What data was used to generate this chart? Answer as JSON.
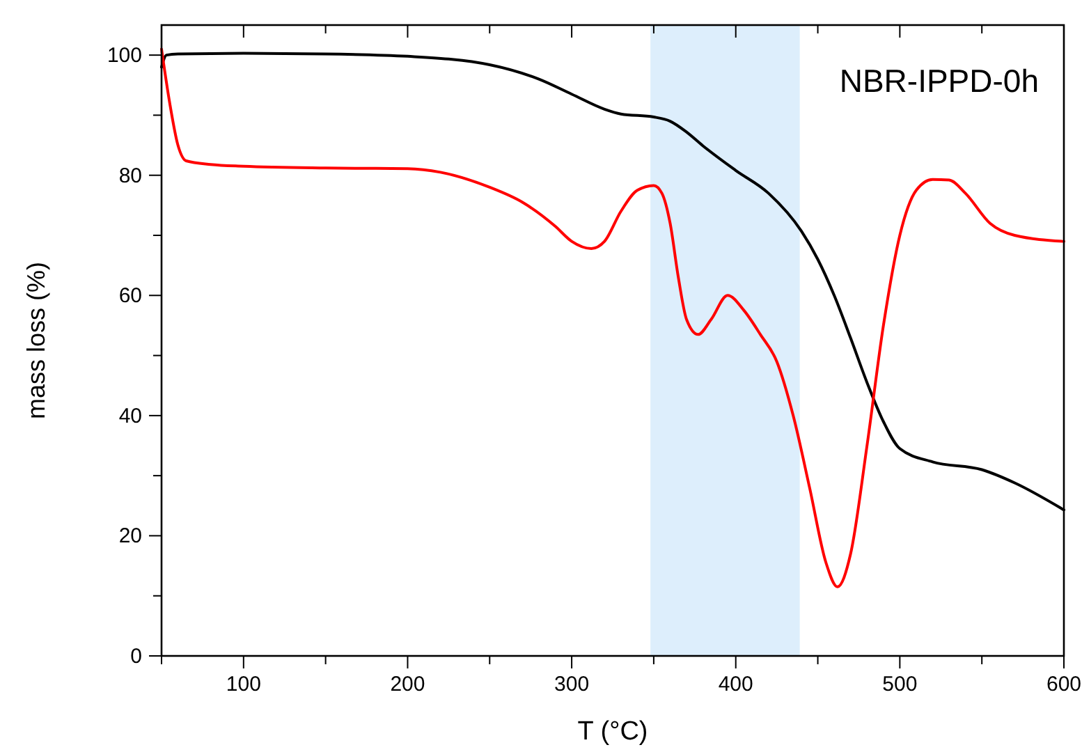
{
  "chart_data": {
    "type": "line",
    "xlabel": "T (°C)",
    "ylabel": "mass loss (%)",
    "annotations": [
      "NBR-IPPD-0h"
    ],
    "xlim": [
      50,
      600
    ],
    "ylim": [
      0,
      105
    ],
    "xticks": [
      {
        "value": 50,
        "label": null
      },
      100,
      {
        "value": 150,
        "label": null
      },
      200,
      {
        "value": 250,
        "label": null
      },
      300,
      {
        "value": 350,
        "label": null
      },
      400,
      {
        "value": 450,
        "label": null
      },
      500,
      {
        "value": 550,
        "label": null
      },
      600
    ],
    "yticks": [
      0,
      {
        "value": 10,
        "label": null
      },
      20,
      {
        "value": 30,
        "label": null
      },
      40,
      {
        "value": 50,
        "label": null
      },
      60,
      {
        "value": 70,
        "label": null
      },
      80,
      {
        "value": 90,
        "label": null
      },
      100
    ],
    "grid": false,
    "line_style": "solid",
    "marker": "none",
    "bands": [
      {
        "axis": "x",
        "from": 348,
        "to": 439,
        "color": "#ddeefc"
      }
    ],
    "series": [
      {
        "color": "#000000",
        "x": [
          50,
          53,
          60,
          100,
          150,
          200,
          250,
          280,
          300,
          320,
          330,
          350,
          360,
          370,
          380,
          400,
          420,
          440,
          450,
          460,
          470,
          480,
          490,
          500,
          520,
          550,
          570,
          600
        ],
        "values": [
          98,
          100,
          100.2,
          100.3,
          100.2,
          99.8,
          98.4,
          96,
          93.5,
          91,
          90.2,
          89.7,
          89,
          87.2,
          84.9,
          80.8,
          77,
          70.7,
          66,
          60,
          52.9,
          45.5,
          39,
          34.5,
          32.3,
          31,
          28.8,
          24.3
        ]
      },
      {
        "color": "#ff0000",
        "x": [
          50,
          55,
          60,
          65,
          80,
          100,
          150,
          200,
          220,
          250,
          270,
          290,
          300,
          312,
          320,
          330,
          340,
          350,
          355,
          360,
          365,
          370,
          377,
          385,
          395,
          405,
          415,
          425,
          435,
          445,
          455,
          462,
          470,
          480,
          490,
          500,
          510,
          520,
          530,
          540,
          555,
          570,
          600
        ],
        "values": [
          101,
          92,
          85,
          82.4,
          81.8,
          81.5,
          81.2,
          81.1,
          80.5,
          78,
          75.5,
          71.5,
          69,
          67.8,
          69,
          74,
          77.5,
          78.3,
          77,
          72,
          63,
          56,
          53.5,
          56,
          60,
          57.5,
          53.5,
          49,
          40,
          28,
          15.5,
          11.5,
          17,
          35,
          55,
          70,
          77.5,
          79.3,
          79.2,
          77,
          72,
          70,
          69
        ]
      }
    ]
  }
}
